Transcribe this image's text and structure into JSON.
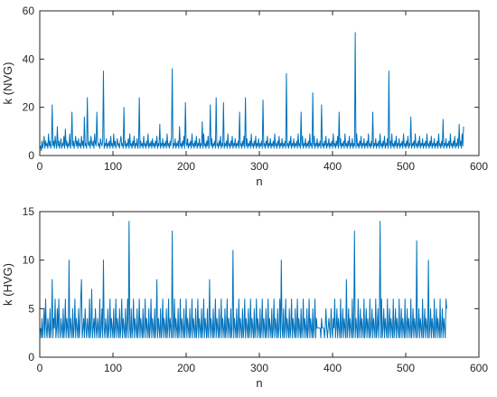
{
  "chart_data": [
    {
      "type": "line",
      "title": "",
      "xlabel": "n",
      "ylabel": "k (NVG)",
      "xlim": [
        0,
        600
      ],
      "ylim": [
        0,
        60
      ],
      "xticks": [
        0,
        100,
        200,
        300,
        400,
        500,
        600
      ],
      "yticks": [
        0,
        20,
        40,
        60
      ],
      "grid": false,
      "color": "#0072BD",
      "series": [
        {
          "values": [
            4,
            2,
            6,
            3,
            5,
            8,
            3,
            6,
            4,
            5,
            3,
            9,
            4,
            6,
            3,
            5,
            21,
            4,
            6,
            3,
            8,
            5,
            3,
            12,
            4,
            6,
            3,
            5,
            7,
            3,
            5,
            4,
            8,
            3,
            11,
            4,
            6,
            3,
            5,
            4,
            9,
            3,
            5,
            18,
            4,
            6,
            3,
            5,
            8,
            4,
            6,
            3,
            7,
            4,
            5,
            3,
            8,
            4,
            6,
            3,
            16,
            4,
            5,
            3,
            24,
            5,
            4,
            6,
            3,
            8,
            5,
            4,
            6,
            3,
            9,
            5,
            4,
            18,
            6,
            4,
            5,
            3,
            7,
            5,
            4,
            6,
            35,
            3,
            5,
            4,
            7,
            3,
            5,
            4,
            6,
            3,
            8,
            4,
            5,
            3,
            9,
            4,
            6,
            3,
            5,
            7,
            4,
            5,
            3,
            6,
            8,
            4,
            5,
            3,
            20,
            4,
            6,
            3,
            5,
            4,
            7,
            3,
            9,
            4,
            5,
            3,
            6,
            4,
            8,
            3,
            5,
            4,
            7,
            3,
            5,
            24,
            3,
            6,
            4,
            5,
            3,
            8,
            4,
            5,
            3,
            6,
            4,
            9,
            3,
            5,
            4,
            6,
            3,
            7,
            4,
            5,
            3,
            6,
            4,
            8,
            3,
            5,
            4,
            13,
            3,
            5,
            4,
            7,
            3,
            5,
            4,
            6,
            3,
            9,
            4,
            5,
            3,
            6,
            4,
            8,
            36,
            3,
            5,
            4,
            7,
            3,
            5,
            4,
            6,
            3,
            12,
            4,
            5,
            3,
            6,
            4,
            8,
            3,
            22,
            5,
            4,
            7,
            3,
            5,
            4,
            6,
            3,
            9,
            4,
            5,
            3,
            6,
            4,
            8,
            3,
            5,
            4,
            7,
            3,
            5,
            4,
            14,
            3,
            9,
            4,
            5,
            3,
            6,
            4,
            8,
            3,
            5,
            21,
            4,
            7,
            3,
            5,
            4,
            6,
            3,
            24,
            4,
            5,
            3,
            6,
            4,
            8,
            3,
            5,
            4,
            22,
            3,
            5,
            4,
            6,
            3,
            9,
            4,
            5,
            3,
            6,
            4,
            8,
            3,
            5,
            4,
            7,
            3,
            5,
            4,
            6,
            3,
            18,
            4,
            5,
            3,
            6,
            4,
            8,
            3,
            24,
            4,
            7,
            3,
            5,
            4,
            6,
            3,
            9,
            4,
            5,
            3,
            6,
            4,
            8,
            3,
            5,
            4,
            7,
            3,
            5,
            4,
            6,
            3,
            23,
            4,
            5,
            3,
            6,
            4,
            8,
            3,
            5,
            4,
            7,
            3,
            5,
            4,
            6,
            3,
            9,
            4,
            5,
            3,
            6,
            4,
            8,
            3,
            5,
            4,
            7,
            3,
            5,
            4,
            6,
            3,
            34,
            4,
            5,
            3,
            6,
            4,
            8,
            3,
            5,
            4,
            7,
            3,
            5,
            4,
            6,
            3,
            9,
            4,
            5,
            3,
            18,
            4,
            8,
            3,
            5,
            4,
            7,
            3,
            5,
            4,
            6,
            3,
            9,
            4,
            5,
            3,
            26,
            4,
            8,
            3,
            5,
            4,
            7,
            3,
            5,
            4,
            6,
            3,
            21,
            4,
            5,
            3,
            6,
            4,
            8,
            3,
            5,
            4,
            7,
            3,
            5,
            4,
            6,
            3,
            9,
            4,
            5,
            3,
            6,
            4,
            8,
            3,
            18,
            4,
            7,
            3,
            5,
            4,
            6,
            3,
            9,
            4,
            5,
            3,
            6,
            4,
            8,
            3,
            5,
            4,
            7,
            3,
            5,
            4,
            51,
            3,
            9,
            4,
            5,
            3,
            6,
            4,
            8,
            3,
            5,
            4,
            7,
            3,
            5,
            4,
            6,
            3,
            9,
            4,
            5,
            3,
            6,
            4,
            18,
            3,
            5,
            4,
            7,
            3,
            5,
            4,
            6,
            3,
            9,
            4,
            5,
            3,
            6,
            4,
            8,
            3,
            5,
            4,
            7,
            3,
            35,
            4,
            6,
            3,
            9,
            4,
            5,
            3,
            6,
            4,
            8,
            3,
            5,
            4,
            7,
            3,
            5,
            4,
            6,
            3,
            9,
            4,
            5,
            3,
            6,
            4,
            8,
            3,
            5,
            4,
            16,
            3,
            5,
            4,
            6,
            3,
            9,
            4,
            5,
            3,
            6,
            4,
            8,
            3,
            5,
            4,
            7,
            3,
            5,
            4,
            6,
            3,
            9,
            4,
            5,
            3,
            6,
            4,
            8,
            3,
            5,
            4,
            7,
            3,
            5,
            4,
            6,
            3,
            9,
            4,
            5,
            3,
            6,
            4,
            15,
            3,
            5,
            4,
            7,
            3,
            5,
            4,
            6,
            3,
            9,
            4,
            5,
            3,
            6,
            4,
            8,
            3,
            5,
            4,
            7,
            3,
            13,
            4,
            6,
            3,
            9,
            4,
            12
          ]
        }
      ]
    },
    {
      "type": "line",
      "title": "",
      "xlabel": "n",
      "ylabel": "k (HVG)",
      "xlim": [
        0,
        600
      ],
      "ylim": [
        0,
        15
      ],
      "xticks": [
        0,
        100,
        200,
        300,
        400,
        500,
        600
      ],
      "yticks": [
        0,
        5,
        10,
        15
      ],
      "grid": false,
      "color": "#0072BD",
      "series": [
        {
          "values": [
            3,
            2,
            4,
            2,
            3,
            5,
            2,
            6,
            3,
            2,
            4,
            3,
            2,
            5,
            2,
            3,
            8,
            2,
            4,
            3,
            6,
            2,
            3,
            5,
            2,
            6,
            3,
            2,
            4,
            3,
            2,
            5,
            2,
            3,
            6,
            2,
            4,
            3,
            2,
            10,
            2,
            4,
            3,
            2,
            5,
            2,
            3,
            6,
            2,
            4,
            3,
            2,
            5,
            2,
            3,
            6,
            8,
            2,
            3,
            4,
            2,
            5,
            3,
            2,
            4,
            3,
            2,
            6,
            2,
            3,
            7,
            2,
            3,
            4,
            2,
            5,
            3,
            2,
            4,
            3,
            2,
            6,
            2,
            3,
            5,
            2,
            10,
            3,
            2,
            4,
            3,
            2,
            5,
            2,
            3,
            6,
            2,
            4,
            3,
            2,
            5,
            2,
            3,
            6,
            2,
            4,
            3,
            2,
            5,
            2,
            3,
            6,
            2,
            4,
            3,
            2,
            5,
            2,
            3,
            6,
            2,
            14,
            3,
            2,
            5,
            2,
            3,
            6,
            2,
            4,
            3,
            2,
            5,
            2,
            3,
            6,
            2,
            4,
            3,
            2,
            5,
            2,
            3,
            6,
            2,
            4,
            3,
            2,
            5,
            2,
            3,
            6,
            2,
            4,
            3,
            2,
            5,
            2,
            3,
            8,
            2,
            4,
            3,
            2,
            5,
            2,
            3,
            6,
            2,
            4,
            3,
            2,
            5,
            2,
            3,
            6,
            2,
            4,
            3,
            2,
            13,
            2,
            3,
            6,
            2,
            4,
            3,
            2,
            5,
            2,
            3,
            6,
            2,
            4,
            3,
            2,
            5,
            2,
            3,
            6,
            2,
            4,
            3,
            2,
            5,
            2,
            3,
            6,
            2,
            4,
            3,
            2,
            5,
            2,
            3,
            6,
            2,
            4,
            3,
            2,
            5,
            2,
            3,
            6,
            2,
            4,
            3,
            2,
            5,
            2,
            3,
            8,
            2,
            4,
            3,
            2,
            5,
            2,
            3,
            6,
            2,
            4,
            3,
            2,
            5,
            2,
            3,
            6,
            2,
            4,
            3,
            2,
            5,
            2,
            3,
            6,
            2,
            4,
            3,
            2,
            5,
            2,
            3,
            11,
            2,
            4,
            3,
            2,
            5,
            2,
            3,
            6,
            2,
            4,
            3,
            2,
            5,
            2,
            3,
            6,
            2,
            4,
            3,
            2,
            5,
            2,
            3,
            6,
            2,
            4,
            3,
            2,
            5,
            2,
            3,
            6,
            2,
            4,
            3,
            2,
            5,
            2,
            3,
            6,
            2,
            4,
            3,
            2,
            5,
            2,
            3,
            6,
            2,
            4,
            3,
            2,
            5,
            2,
            3,
            6,
            2,
            4,
            3,
            2,
            5,
            2,
            3,
            6,
            2,
            10,
            3,
            2,
            5,
            2,
            3,
            6,
            2,
            4,
            3,
            2,
            5,
            2,
            3,
            6,
            2,
            4,
            3,
            2,
            5,
            2,
            3,
            6,
            2,
            4,
            3,
            2,
            5,
            2,
            3,
            6,
            2,
            4,
            3,
            2,
            5,
            2,
            3,
            6,
            2,
            4,
            3,
            2,
            5,
            2,
            3,
            6,
            2,
            4,
            3,
            3,
            3,
            3,
            3,
            2,
            4,
            3,
            3,
            3,
            2,
            3,
            5,
            3,
            2,
            3,
            4,
            3,
            2,
            5,
            3,
            2,
            4,
            3,
            6,
            2,
            3,
            5,
            2,
            4,
            3,
            2,
            6,
            2,
            3,
            5,
            2,
            4,
            3,
            2,
            8,
            2,
            3,
            5,
            2,
            4,
            3,
            2,
            6,
            2,
            3,
            13,
            2,
            4,
            3,
            2,
            6,
            2,
            3,
            5,
            2,
            4,
            3,
            2,
            6,
            2,
            3,
            5,
            2,
            4,
            3,
            2,
            6,
            2,
            3,
            5,
            2,
            4,
            3,
            2,
            6,
            2,
            3,
            5,
            2,
            4,
            14,
            2,
            6,
            2,
            3,
            5,
            2,
            4,
            3,
            2,
            6,
            2,
            3,
            5,
            2,
            4,
            3,
            2,
            6,
            2,
            3,
            5,
            2,
            4,
            3,
            2,
            6,
            2,
            3,
            5,
            2,
            4,
            3,
            2,
            6,
            2,
            3,
            5,
            2,
            4,
            3,
            2,
            6,
            2,
            3,
            5,
            2,
            4,
            3,
            2,
            12,
            2,
            3,
            5,
            2,
            4,
            3,
            2,
            6,
            2,
            3,
            5,
            2,
            4,
            3,
            2,
            10,
            2,
            3,
            5,
            2,
            4,
            3,
            2,
            6,
            2,
            3,
            5,
            2,
            4,
            3,
            2,
            6,
            2,
            3,
            5,
            2,
            4,
            3,
            2,
            6,
            5
          ]
        }
      ]
    }
  ]
}
